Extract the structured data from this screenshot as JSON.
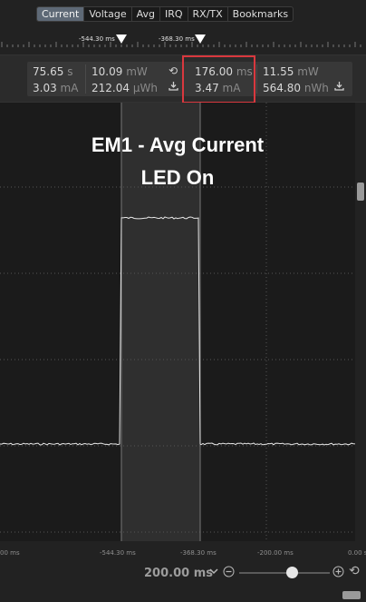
{
  "tabs": [
    {
      "label": "Current",
      "active": true
    },
    {
      "label": "Voltage"
    },
    {
      "label": "Avg"
    },
    {
      "label": "IRQ"
    },
    {
      "label": "RX/TX"
    },
    {
      "label": "Bookmarks"
    }
  ],
  "markers": [
    {
      "label": "-544.30 ms"
    },
    {
      "label": "-368.30 ms"
    }
  ],
  "measurements": {
    "left": {
      "time": {
        "value": "75.65",
        "unit": "s"
      },
      "current": {
        "value": "3.03",
        "unit": "mA"
      },
      "power": {
        "value": "10.09",
        "unit": "mW"
      },
      "energy": {
        "value": "212.04",
        "unit": "µWh"
      }
    },
    "right": {
      "duration": {
        "value": "176.00",
        "unit": "ms"
      },
      "avg_current": {
        "value": "3.47",
        "unit": "mA"
      },
      "power": {
        "value": "11.55",
        "unit": "mW"
      },
      "energy": {
        "value": "564.80",
        "unit": "nWh"
      }
    }
  },
  "annotation": {
    "line1": "EM1 - Avg Current",
    "line2": "LED On"
  },
  "axis_ticks": [
    "00 ms",
    "-544.30 ms",
    "-368.30 ms",
    "-200.00 ms",
    "0.00 s"
  ],
  "zoom": {
    "value": "200.00 ms",
    "slider_fraction": 0.6
  },
  "icons": {
    "reset": "reset-icon",
    "export": "export-icon",
    "zoom_out": "zoom-out-icon",
    "zoom_in": "zoom-in-icon",
    "dropdown": "chevron-down-icon"
  }
}
